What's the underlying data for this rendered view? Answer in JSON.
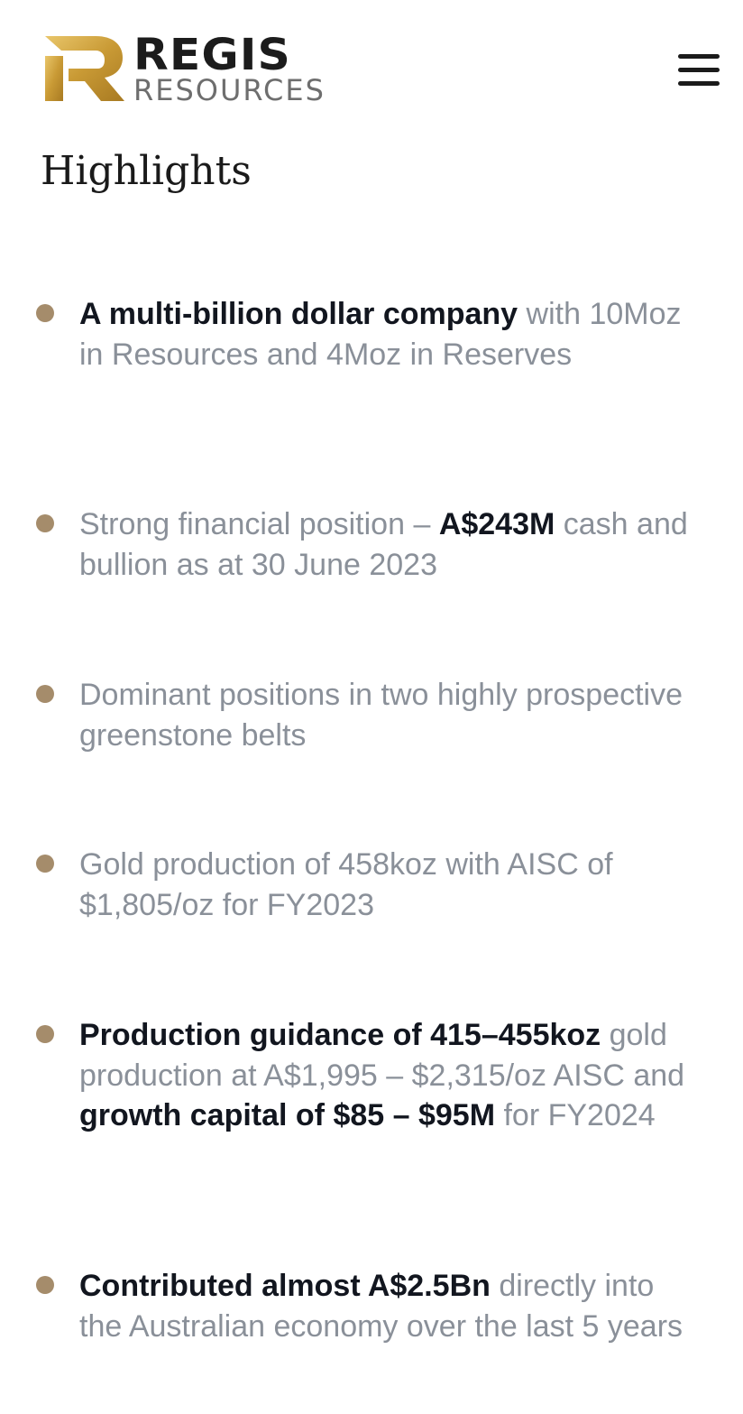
{
  "header": {
    "logo": {
      "name": "REGIS",
      "tagline": "RESOURCES",
      "mark_icon": "regis-r-logo-mark-icon"
    },
    "menu_icon": "hamburger-menu-icon"
  },
  "page_title": "Highlights",
  "colors": {
    "bullet": "#a58c6b",
    "emphasis_text": "#12161f",
    "body_text": "#8a9099",
    "logo_gold": "#d2a640"
  },
  "highlights": [
    {
      "segments": [
        {
          "text": "A multi-billion dollar company",
          "bold": true
        },
        {
          "text": " with 10Moz in Resources and 4Moz in Reserves",
          "bold": false
        }
      ]
    },
    {
      "segments": [
        {
          "text": "Strong financial position – ",
          "bold": false
        },
        {
          "text": "A$243M",
          "bold": true
        },
        {
          "text": " cash and bullion as at 30 June 2023",
          "bold": false
        }
      ]
    },
    {
      "segments": [
        {
          "text": "Dominant positions in two highly prospective greenstone belts",
          "bold": false
        }
      ]
    },
    {
      "segments": [
        {
          "text": "Gold production of 458koz with AISC of $1,805/oz for FY2023",
          "bold": false
        }
      ]
    },
    {
      "segments": [
        {
          "text": "Production guidance of 415–455koz",
          "bold": true
        },
        {
          "text": " gold production at A$1,995 – $2,315/oz AISC and ",
          "bold": false
        },
        {
          "text": "growth capital of $85 – $95M",
          "bold": true
        },
        {
          "text": " for FY2024",
          "bold": false
        }
      ]
    },
    {
      "segments": [
        {
          "text": "Contributed almost A$2.5Bn",
          "bold": true
        },
        {
          "text": " directly into the Australian economy over the last 5 years",
          "bold": false
        }
      ]
    }
  ]
}
